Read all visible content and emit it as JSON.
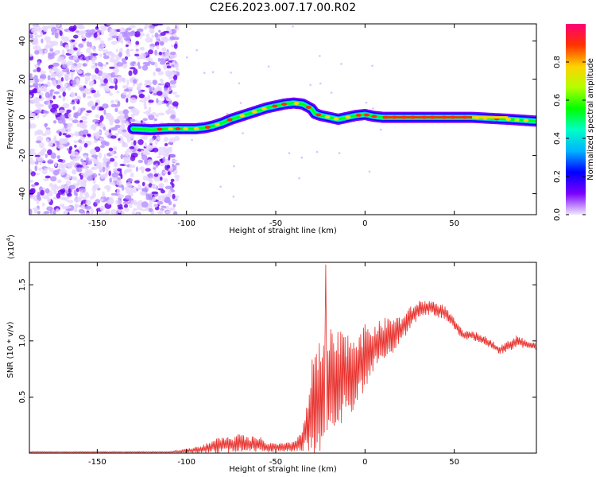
{
  "title": "C2E6.2023.007.17.00.R02",
  "chart_data": [
    {
      "type": "heatmap",
      "xlabel": "Height of straight line (km)",
      "ylabel": "Frequency (Hz)",
      "xlim": [
        -188,
        96
      ],
      "ylim": [
        -51,
        49
      ],
      "xticks": [
        -150,
        -100,
        -50,
        0,
        50
      ],
      "yticks": [
        -40,
        -20,
        0,
        20,
        40
      ],
      "colorbar": {
        "label": "Normalized spectral amplitude",
        "ticks": [
          0.0,
          0.2,
          0.4,
          0.6,
          0.8
        ],
        "range": [
          0,
          1
        ],
        "colors": [
          "#f0e8ff",
          "#7a00ff",
          "#0000ff",
          "#00b4ff",
          "#00ffc8",
          "#00ff00",
          "#b4ff00",
          "#ffd200",
          "#ff3200",
          "#ff0078"
        ]
      },
      "ridge": {
        "x": [
          -130,
          -120,
          -110,
          -100,
          -95,
          -90,
          -85,
          -80,
          -75,
          -70,
          -65,
          -60,
          -55,
          -50,
          -45,
          -40,
          -35,
          -30,
          -28,
          -25,
          -20,
          -15,
          -10,
          -5,
          0,
          5,
          10,
          20,
          40,
          60,
          80,
          96
        ],
        "y": [
          -6,
          -6.5,
          -6,
          -6,
          -6,
          -5.5,
          -4.5,
          -3,
          -1,
          0.5,
          2,
          3.5,
          5,
          6,
          7,
          7.5,
          7,
          4.5,
          2,
          1,
          0,
          -1,
          0,
          1,
          1.5,
          0.5,
          0,
          0,
          0,
          0,
          -1,
          -2
        ]
      },
      "noise_region_x": [
        -188,
        -105
      ]
    },
    {
      "type": "line",
      "xlabel": "Height of straight line (km)",
      "ylabel": "SNR (10 * v/v)",
      "multiplier_label": "(x10",
      "multiplier_exp": "4",
      "multiplier_close": ")",
      "xlim": [
        -188,
        96
      ],
      "ylim": [
        0,
        1.7
      ],
      "xticks": [
        -150,
        -100,
        -50,
        0,
        50
      ],
      "yticks": [
        0.5,
        1.0,
        1.5
      ],
      "series": [
        {
          "color": "#e8302c",
          "envelope": {
            "x": [
              -188,
              -110,
              -100,
              -90,
              -85,
              -80,
              -75,
              -70,
              -65,
              -60,
              -55,
              -50,
              -45,
              -40,
              -35,
              -32,
              -30,
              -28,
              -25,
              -22,
              -20,
              -18,
              -15,
              -10,
              -5,
              0,
              5,
              10,
              15,
              20,
              25,
              30,
              35,
              40,
              45,
              50,
              55,
              60,
              65,
              70,
              75,
              80,
              85,
              90,
              96
            ],
            "base": [
              0.01,
              0.01,
              0.02,
              0.04,
              0.06,
              0.08,
              0.07,
              0.09,
              0.07,
              0.08,
              0.05,
              0.05,
              0.05,
              0.06,
              0.12,
              0.25,
              0.35,
              0.45,
              0.5,
              0.55,
              0.6,
              0.55,
              0.65,
              0.7,
              0.75,
              0.85,
              0.95,
              1.0,
              1.05,
              1.1,
              1.2,
              1.28,
              1.3,
              1.28,
              1.25,
              1.15,
              1.05,
              1.05,
              1.02,
              0.98,
              0.92,
              0.95,
              1.0,
              0.97,
              0.95
            ],
            "amplitude": [
              0.005,
              0.005,
              0.02,
              0.04,
              0.06,
              0.08,
              0.07,
              0.09,
              0.07,
              0.08,
              0.05,
              0.04,
              0.04,
              0.05,
              0.1,
              0.25,
              0.45,
              0.55,
              0.5,
              0.5,
              0.55,
              0.5,
              0.45,
              0.4,
              0.35,
              0.3,
              0.2,
              0.2,
              0.18,
              0.12,
              0.1,
              0.08,
              0.07,
              0.07,
              0.06,
              0.05,
              0.04,
              0.04,
              0.04,
              0.04,
              0.04,
              0.05,
              0.06,
              0.04,
              0.03
            ]
          },
          "peak": [
            -22,
            1.68
          ]
        }
      ]
    }
  ]
}
